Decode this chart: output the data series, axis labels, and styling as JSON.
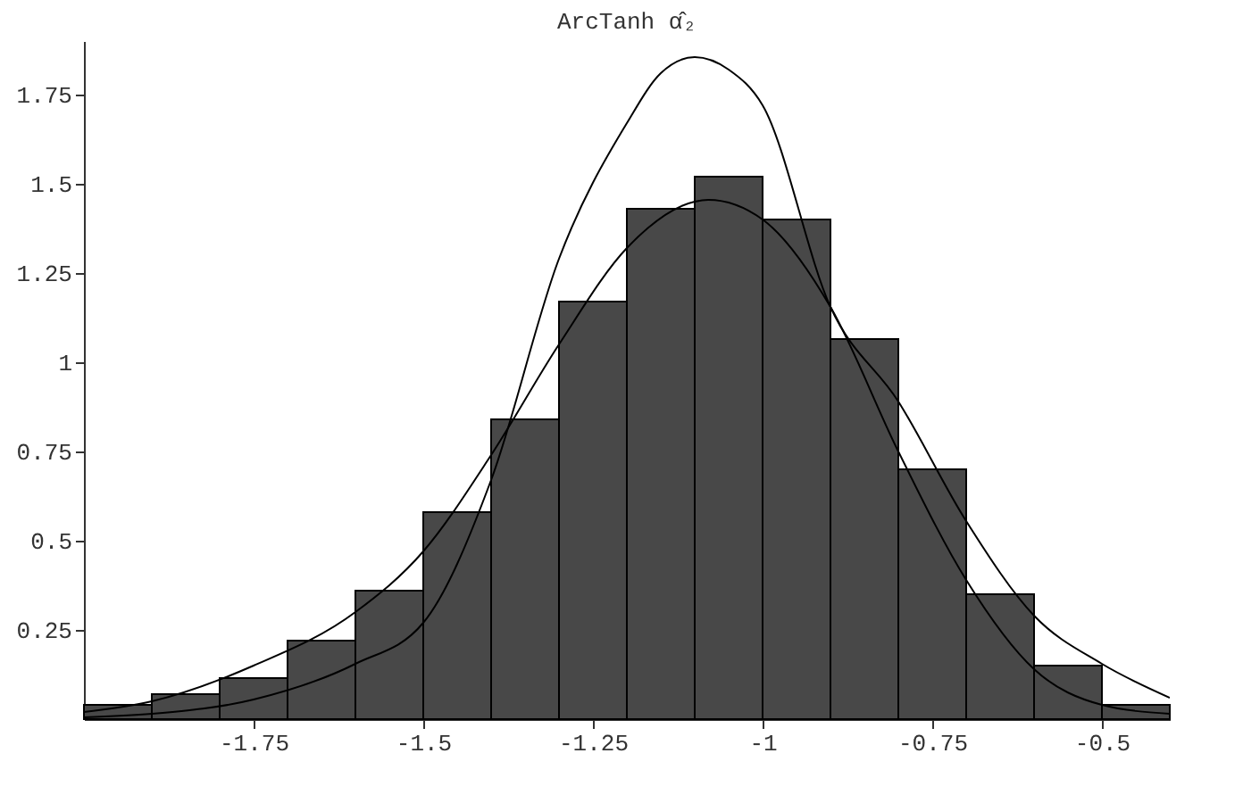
{
  "chart_data": {
    "type": "histogram",
    "title": "ArcTanh α̂₂",
    "xlim": [
      -2.0,
      -0.4
    ],
    "ylim": [
      0,
      1.9
    ],
    "xticks": [
      -1.75,
      -1.5,
      -1.25,
      -1,
      -0.75,
      -0.5
    ],
    "yticks": [
      0.25,
      0.5,
      0.75,
      1,
      1.25,
      1.5,
      1.75
    ],
    "grid": false,
    "line_style": "solid",
    "series": [
      {
        "color": "#484848",
        "bins": [
          -2.0,
          -1.9,
          -1.8,
          -1.7,
          -1.6,
          -1.5,
          -1.4,
          -1.3,
          -1.2,
          -1.1,
          -1.0,
          -0.9,
          -0.8,
          -0.7,
          -0.6,
          -0.5,
          -0.4
        ],
        "values": [
          0.04,
          0.07,
          0.115,
          0.22,
          0.36,
          0.58,
          0.84,
          1.17,
          1.43,
          1.52,
          1.4,
          1.065,
          0.7,
          0.35,
          0.15,
          0.04
        ]
      },
      {
        "type": "line",
        "color": "#000000",
        "x": [
          -2.0,
          -1.9,
          -1.75,
          -1.6,
          -1.5,
          -1.4,
          -1.3,
          -1.2,
          -1.15,
          -1.1,
          -1.05,
          -1.0,
          -0.9,
          -0.8,
          -0.7,
          -0.6,
          -0.5,
          -0.4
        ],
        "values": [
          0.005,
          0.015,
          0.055,
          0.155,
          0.27,
          0.67,
          1.29,
          1.67,
          1.81,
          1.855,
          1.82,
          1.72,
          1.155,
          0.89,
          0.555,
          0.29,
          0.155,
          0.06
        ]
      },
      {
        "type": "line",
        "color": "#000000",
        "x": [
          -2.0,
          -1.9,
          -1.75,
          -1.6,
          -1.5,
          -1.4,
          -1.3,
          -1.2,
          -1.1,
          -1.08,
          -1.0,
          -0.9,
          -0.8,
          -0.7,
          -0.6,
          -0.5,
          -0.4
        ],
        "values": [
          0.02,
          0.05,
          0.15,
          0.3,
          0.47,
          0.74,
          1.05,
          1.32,
          1.45,
          1.455,
          1.4,
          1.155,
          0.75,
          0.39,
          0.14,
          0.04,
          0.015
        ]
      }
    ]
  }
}
